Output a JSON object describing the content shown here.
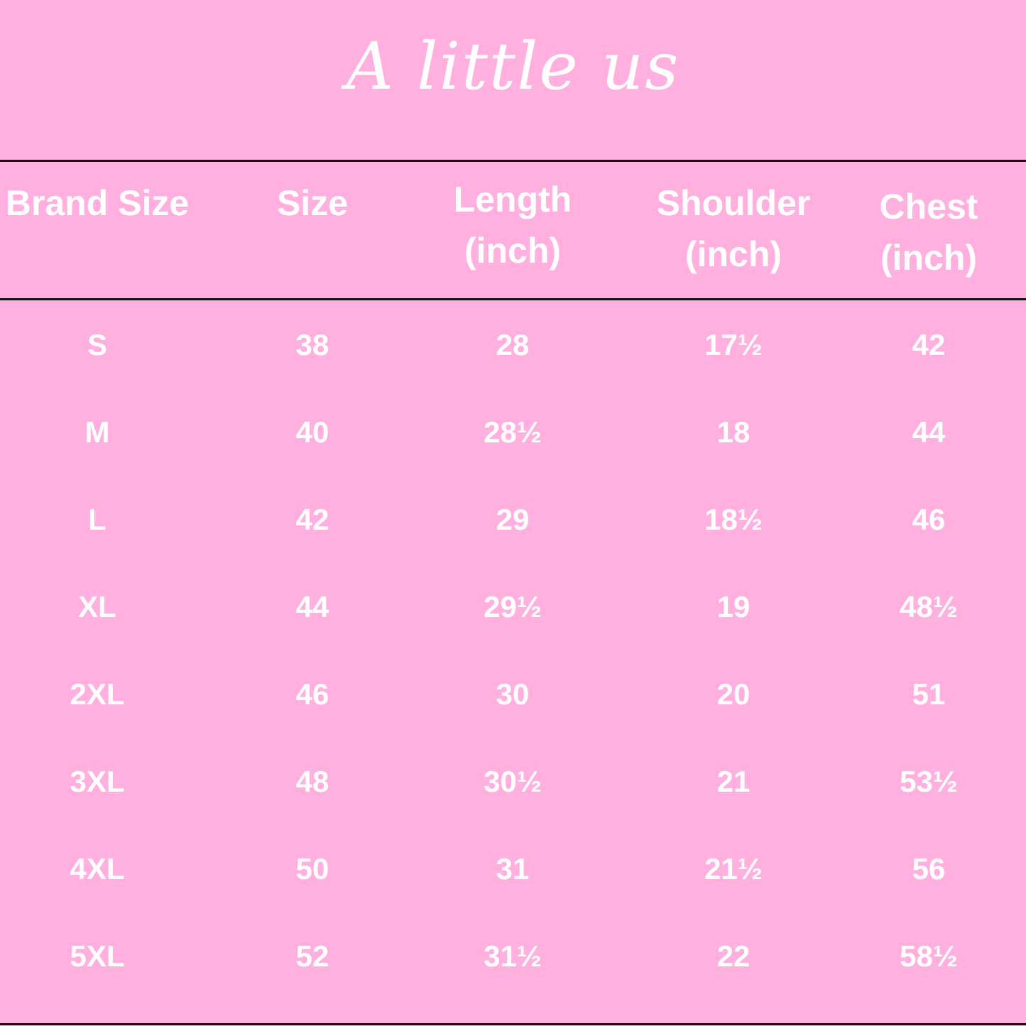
{
  "title": "A little us",
  "colors": {
    "background": "#FFB0DE",
    "text": "#FFFFFF",
    "rule": "#111111"
  },
  "table": {
    "headers": [
      {
        "line1": "Brand Size",
        "line2": ""
      },
      {
        "line1": "Size",
        "line2": ""
      },
      {
        "line1": "Length",
        "line2": "(inch)"
      },
      {
        "line1": "Shoulder",
        "line2": "(inch)"
      },
      {
        "line1": "Chest",
        "line2": "(inch)"
      }
    ],
    "rows": [
      [
        "S",
        "38",
        "28",
        "17½",
        "42"
      ],
      [
        "M",
        "40",
        "28½",
        "18",
        "44"
      ],
      [
        "L",
        "42",
        "29",
        "18½",
        "46"
      ],
      [
        "XL",
        "44",
        "29½",
        "19",
        "48½"
      ],
      [
        "2XL",
        "46",
        "30",
        "20",
        "51"
      ],
      [
        "3XL",
        "48",
        "30½",
        "21",
        "53½"
      ],
      [
        "4XL",
        "50",
        "31",
        "21½",
        "56"
      ],
      [
        "5XL",
        "52",
        "31½",
        "22",
        "58½"
      ]
    ]
  }
}
